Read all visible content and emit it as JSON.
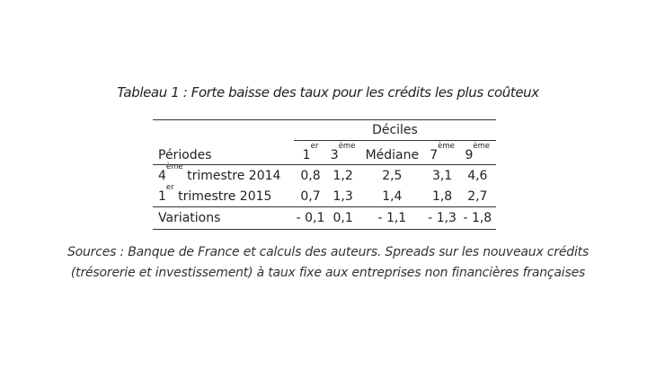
{
  "title": "Tableau 1 : Forte baisse des taux pour les crédits les plus coûteux",
  "table": {
    "group_header": "Déciles",
    "period_header": "Périodes",
    "columns": [
      {
        "base": "1",
        "sup": "er"
      },
      {
        "base": "3",
        "sup": "ème"
      },
      {
        "base": "Médiane",
        "sup": ""
      },
      {
        "base": "7",
        "sup": "ème"
      },
      {
        "base": "9",
        "sup": "ème"
      }
    ],
    "rows": [
      {
        "label_base": "4",
        "label_sup": "ème",
        "label_rest": " trimestre 2014",
        "values": [
          "0,8",
          "1,2",
          "2,5",
          "3,1",
          "4,6"
        ]
      },
      {
        "label_base": "1",
        "label_sup": "er",
        "label_rest": " trimestre 2015",
        "values": [
          "0,7",
          "1,3",
          "1,4",
          "1,8",
          "2,7"
        ]
      }
    ],
    "variations": {
      "label": "Variations",
      "values": [
        "- 0,1",
        "0,1",
        "- 1,1",
        "- 1,3",
        "- 1,8"
      ]
    }
  },
  "sources": {
    "line1": "Sources : Banque de France et calculs des auteurs. Spreads sur les nouveaux crédits",
    "line2": "(trésorerie et investissement) à taux fixe aux entreprises non financières françaises"
  }
}
